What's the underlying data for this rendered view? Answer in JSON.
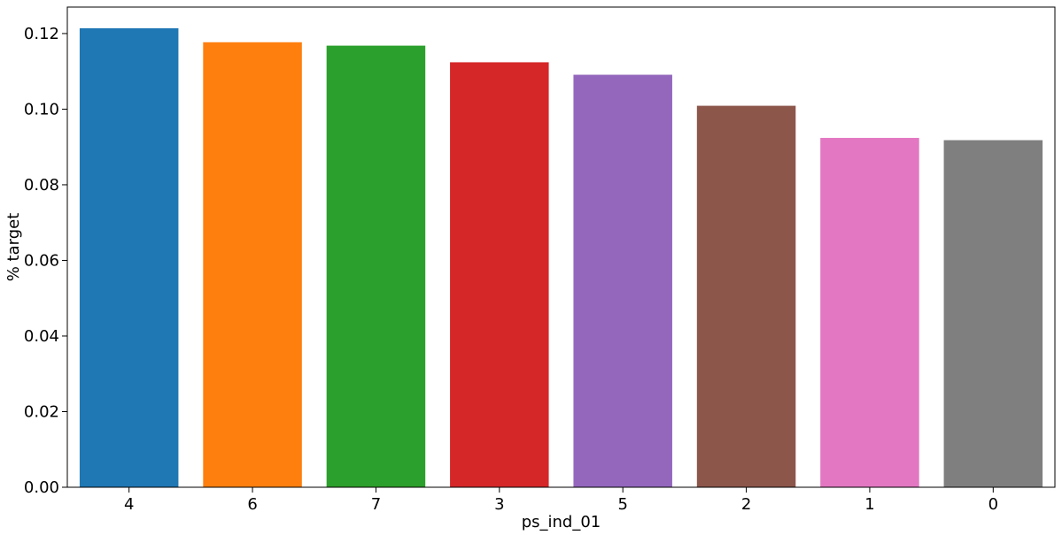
{
  "chart_data": {
    "type": "bar",
    "title": "",
    "xlabel": "ps_ind_01",
    "ylabel": "% target",
    "categories": [
      "4",
      "6",
      "7",
      "3",
      "5",
      "2",
      "1",
      "0"
    ],
    "values": [
      0.1214,
      0.1177,
      0.1168,
      0.1124,
      0.1091,
      0.1009,
      0.0924,
      0.0918
    ],
    "colors": [
      "#1f77b4",
      "#ff7f0e",
      "#2ca02c",
      "#d62728",
      "#9467bd",
      "#8c564b",
      "#e377c2",
      "#7f7f7f"
    ],
    "ylim": [
      0,
      0.127
    ],
    "yticks": [
      "0.00",
      "0.02",
      "0.04",
      "0.06",
      "0.08",
      "0.10",
      "0.12"
    ],
    "grid": false,
    "legend": "none"
  }
}
